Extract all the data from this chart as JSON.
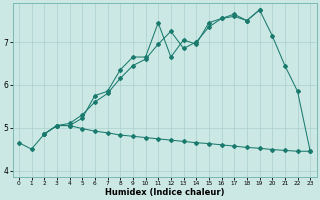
{
  "xlabel": "Humidex (Indice chaleur)",
  "xlim": [
    -0.5,
    23.5
  ],
  "ylim": [
    3.85,
    7.9
  ],
  "xticks": [
    0,
    1,
    2,
    3,
    4,
    5,
    6,
    7,
    8,
    9,
    10,
    11,
    12,
    13,
    14,
    15,
    16,
    17,
    18,
    19,
    20,
    21,
    22,
    23
  ],
  "yticks": [
    4,
    5,
    6,
    7
  ],
  "bg_color": "#cce8e4",
  "line_color": "#1a7a6e",
  "grid_color": "#aad0cc",
  "curve_top_x": [
    0,
    1,
    2,
    3,
    4,
    5,
    6,
    7,
    8,
    9,
    10,
    11,
    12,
    13,
    14,
    15,
    16,
    17,
    18,
    19
  ],
  "curve_top_y": [
    4.65,
    4.5,
    4.85,
    5.05,
    5.05,
    5.22,
    5.75,
    5.85,
    6.35,
    6.65,
    6.65,
    7.45,
    6.65,
    7.05,
    6.95,
    7.45,
    7.55,
    7.65,
    7.5,
    7.75
  ],
  "curve_mid_x": [
    2,
    3,
    4,
    5,
    6,
    7,
    8,
    9,
    10,
    11,
    12,
    13,
    14,
    15,
    16,
    17,
    18,
    19,
    20,
    21,
    22,
    23
  ],
  "curve_mid_y": [
    4.85,
    5.05,
    5.1,
    5.3,
    5.6,
    5.8,
    6.15,
    6.45,
    6.6,
    6.95,
    7.25,
    6.85,
    7.0,
    7.35,
    7.55,
    7.6,
    7.5,
    7.75,
    7.15,
    6.45,
    5.85,
    4.45
  ],
  "curve_low_x": [
    2,
    3,
    4,
    5,
    6,
    7,
    8,
    9,
    10,
    11,
    12,
    13,
    14,
    15,
    16,
    17,
    18,
    19,
    20,
    21,
    22,
    23
  ],
  "curve_low_y": [
    4.85,
    5.05,
    5.05,
    4.98,
    4.92,
    4.88,
    4.83,
    4.8,
    4.77,
    4.74,
    4.71,
    4.68,
    4.65,
    4.63,
    4.6,
    4.57,
    4.54,
    4.52,
    4.49,
    4.47,
    4.45,
    4.45
  ]
}
